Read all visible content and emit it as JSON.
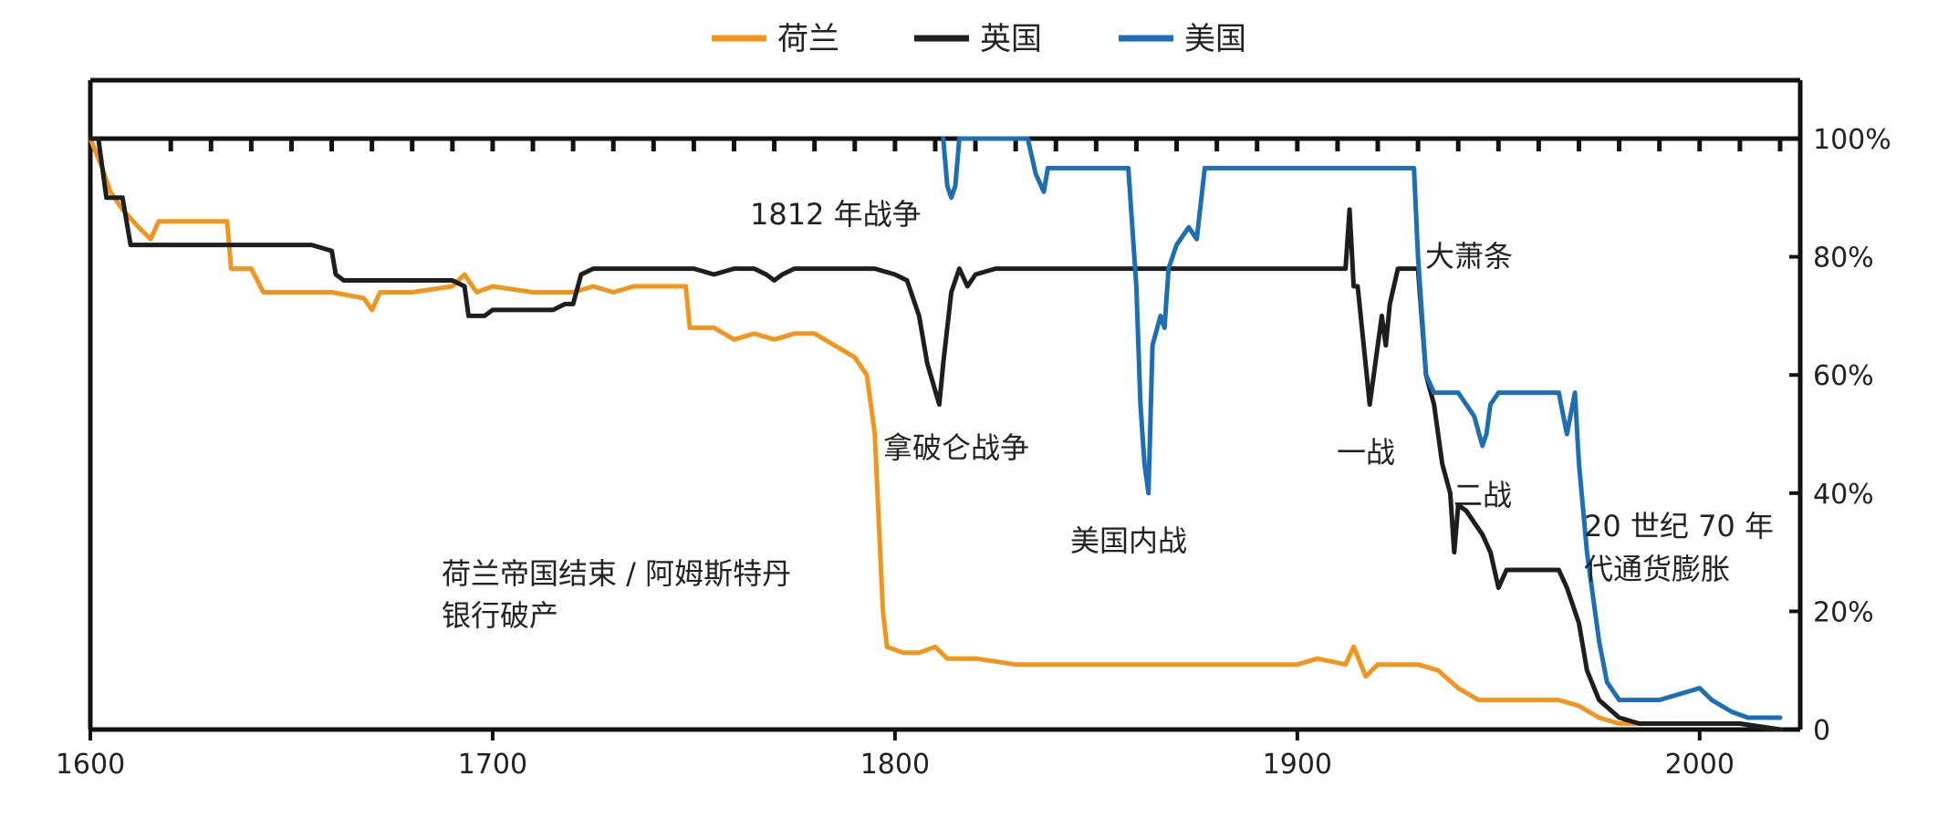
{
  "chart_data": {
    "type": "line",
    "title": "",
    "xlabel": "",
    "ylabel": "",
    "xlim": [
      1600,
      2025
    ],
    "ylim": [
      0,
      100
    ],
    "x_ticks": [
      1600,
      1700,
      1800,
      1900,
      2000
    ],
    "x_tick_labels": [
      "1600",
      "1700",
      "1800",
      "1900",
      "2000"
    ],
    "y_ticks": [
      0,
      20,
      40,
      60,
      80,
      100
    ],
    "y_tick_labels": [
      "0",
      "20%",
      "40%",
      "60%",
      "80%",
      "100%"
    ],
    "y_axis_side": "right",
    "legend_position": "top-center",
    "series": [
      {
        "name": "荷兰",
        "color": "#F0961E",
        "points": [
          [
            1600,
            100
          ],
          [
            1603,
            95
          ],
          [
            1605,
            91
          ],
          [
            1608,
            88
          ],
          [
            1612,
            85
          ],
          [
            1615,
            83
          ],
          [
            1617,
            86
          ],
          [
            1625,
            86
          ],
          [
            1630,
            86
          ],
          [
            1634,
            86
          ],
          [
            1635,
            78
          ],
          [
            1640,
            78
          ],
          [
            1643,
            74
          ],
          [
            1650,
            74
          ],
          [
            1660,
            74
          ],
          [
            1668,
            73
          ],
          [
            1670,
            71
          ],
          [
            1672,
            74
          ],
          [
            1680,
            74
          ],
          [
            1690,
            75
          ],
          [
            1693,
            77
          ],
          [
            1696,
            74
          ],
          [
            1700,
            75
          ],
          [
            1710,
            74
          ],
          [
            1720,
            74
          ],
          [
            1725,
            75
          ],
          [
            1730,
            74
          ],
          [
            1735,
            75
          ],
          [
            1740,
            75
          ],
          [
            1745,
            75
          ],
          [
            1748,
            75
          ],
          [
            1749,
            68
          ],
          [
            1755,
            68
          ],
          [
            1760,
            66
          ],
          [
            1765,
            67
          ],
          [
            1770,
            66
          ],
          [
            1775,
            67
          ],
          [
            1780,
            67
          ],
          [
            1785,
            65
          ],
          [
            1790,
            63
          ],
          [
            1793,
            60
          ],
          [
            1795,
            50
          ],
          [
            1796,
            35
          ],
          [
            1797,
            20
          ],
          [
            1798,
            14
          ],
          [
            1802,
            13
          ],
          [
            1806,
            13
          ],
          [
            1810,
            14
          ],
          [
            1813,
            12
          ],
          [
            1816,
            12
          ],
          [
            1820,
            12
          ],
          [
            1830,
            11
          ],
          [
            1840,
            11
          ],
          [
            1850,
            11
          ],
          [
            1860,
            11
          ],
          [
            1870,
            11
          ],
          [
            1880,
            11
          ],
          [
            1890,
            11
          ],
          [
            1900,
            11
          ],
          [
            1905,
            12
          ],
          [
            1912,
            11
          ],
          [
            1914,
            14
          ],
          [
            1917,
            9
          ],
          [
            1920,
            11
          ],
          [
            1925,
            11
          ],
          [
            1930,
            11
          ],
          [
            1935,
            10
          ],
          [
            1940,
            7
          ],
          [
            1945,
            5
          ],
          [
            1950,
            5
          ],
          [
            1955,
            5
          ],
          [
            1960,
            5
          ],
          [
            1965,
            5
          ],
          [
            1970,
            4
          ],
          [
            1975,
            2
          ],
          [
            1980,
            1
          ],
          [
            1990,
            1
          ],
          [
            2000,
            1
          ],
          [
            2010,
            1
          ],
          [
            2020,
            0
          ]
        ]
      },
      {
        "name": "英国",
        "color": "#1E1E1E",
        "points": [
          [
            1600,
            100
          ],
          [
            1602,
            100
          ],
          [
            1604,
            90
          ],
          [
            1608,
            90
          ],
          [
            1610,
            82
          ],
          [
            1620,
            82
          ],
          [
            1640,
            82
          ],
          [
            1655,
            82
          ],
          [
            1660,
            81
          ],
          [
            1661,
            77
          ],
          [
            1663,
            76
          ],
          [
            1670,
            76
          ],
          [
            1680,
            76
          ],
          [
            1690,
            76
          ],
          [
            1693,
            75
          ],
          [
            1694,
            70
          ],
          [
            1698,
            70
          ],
          [
            1700,
            71
          ],
          [
            1705,
            71
          ],
          [
            1715,
            71
          ],
          [
            1718,
            72
          ],
          [
            1720,
            72
          ],
          [
            1722,
            77
          ],
          [
            1725,
            78
          ],
          [
            1735,
            78
          ],
          [
            1745,
            78
          ],
          [
            1750,
            78
          ],
          [
            1755,
            77
          ],
          [
            1760,
            78
          ],
          [
            1765,
            78
          ],
          [
            1768,
            77
          ],
          [
            1770,
            76
          ],
          [
            1772,
            77
          ],
          [
            1775,
            78
          ],
          [
            1790,
            78
          ],
          [
            1795,
            78
          ],
          [
            1800,
            77
          ],
          [
            1803,
            76
          ],
          [
            1806,
            70
          ],
          [
            1808,
            62
          ],
          [
            1811,
            55
          ],
          [
            1812,
            62
          ],
          [
            1814,
            74
          ],
          [
            1816,
            78
          ],
          [
            1818,
            75
          ],
          [
            1820,
            77
          ],
          [
            1825,
            78
          ],
          [
            1840,
            78
          ],
          [
            1860,
            78
          ],
          [
            1880,
            78
          ],
          [
            1900,
            78
          ],
          [
            1910,
            78
          ],
          [
            1912,
            78
          ],
          [
            1913,
            88
          ],
          [
            1914,
            75
          ],
          [
            1915,
            75
          ],
          [
            1918,
            55
          ],
          [
            1919,
            60
          ],
          [
            1921,
            70
          ],
          [
            1922,
            65
          ],
          [
            1923,
            72
          ],
          [
            1925,
            78
          ],
          [
            1930,
            78
          ],
          [
            1932,
            60
          ],
          [
            1934,
            55
          ],
          [
            1936,
            45
          ],
          [
            1938,
            40
          ],
          [
            1939,
            30
          ],
          [
            1940,
            38
          ],
          [
            1942,
            37
          ],
          [
            1944,
            35
          ],
          [
            1946,
            33
          ],
          [
            1948,
            30
          ],
          [
            1950,
            24
          ],
          [
            1952,
            27
          ],
          [
            1960,
            27
          ],
          [
            1965,
            27
          ],
          [
            1967,
            24
          ],
          [
            1970,
            18
          ],
          [
            1972,
            10
          ],
          [
            1975,
            5
          ],
          [
            1980,
            2
          ],
          [
            1985,
            1
          ],
          [
            1990,
            1
          ],
          [
            2000,
            1
          ],
          [
            2010,
            1
          ],
          [
            2020,
            0
          ]
        ]
      },
      {
        "name": "美国",
        "color": "#1E6EB4",
        "points": [
          [
            1812,
            100
          ],
          [
            1813,
            92
          ],
          [
            1814,
            90
          ],
          [
            1815,
            92
          ],
          [
            1816,
            100
          ],
          [
            1833,
            100
          ],
          [
            1835,
            94
          ],
          [
            1837,
            91
          ],
          [
            1838,
            95
          ],
          [
            1845,
            95
          ],
          [
            1855,
            95
          ],
          [
            1858,
            95
          ],
          [
            1860,
            75
          ],
          [
            1861,
            55
          ],
          [
            1862,
            45
          ],
          [
            1863,
            40
          ],
          [
            1864,
            65
          ],
          [
            1866,
            70
          ],
          [
            1867,
            68
          ],
          [
            1868,
            78
          ],
          [
            1870,
            82
          ],
          [
            1873,
            85
          ],
          [
            1875,
            83
          ],
          [
            1877,
            95
          ],
          [
            1890,
            95
          ],
          [
            1900,
            95
          ],
          [
            1910,
            95
          ],
          [
            1920,
            95
          ],
          [
            1929,
            95
          ],
          [
            1930,
            80
          ],
          [
            1932,
            60
          ],
          [
            1934,
            57
          ],
          [
            1940,
            57
          ],
          [
            1942,
            55
          ],
          [
            1944,
            53
          ],
          [
            1946,
            48
          ],
          [
            1947,
            50
          ],
          [
            1948,
            55
          ],
          [
            1950,
            57
          ],
          [
            1955,
            57
          ],
          [
            1965,
            57
          ],
          [
            1967,
            50
          ],
          [
            1969,
            57
          ],
          [
            1970,
            45
          ],
          [
            1972,
            30
          ],
          [
            1975,
            15
          ],
          [
            1977,
            8
          ],
          [
            1980,
            5
          ],
          [
            1985,
            5
          ],
          [
            1990,
            5
          ],
          [
            1995,
            6
          ],
          [
            2000,
            7
          ],
          [
            2003,
            5
          ],
          [
            2008,
            3
          ],
          [
            2012,
            2
          ],
          [
            2015,
            2
          ],
          [
            2020,
            2
          ]
        ]
      }
    ],
    "annotations": [
      {
        "id": "napoleonic-war",
        "lines": [
          "拿破仑战争"
        ]
      },
      {
        "id": "war-of-1812",
        "lines": [
          "1812 年战争"
        ]
      },
      {
        "id": "us-civil-war",
        "lines": [
          "美国内战"
        ]
      },
      {
        "id": "dutch-empire-end",
        "lines": [
          "荷兰帝国结束 / 阿姆斯特丹",
          "银行破产"
        ]
      },
      {
        "id": "great-depression",
        "lines": [
          "大萧条"
        ]
      },
      {
        "id": "ww1",
        "lines": [
          "一战"
        ]
      },
      {
        "id": "ww2",
        "lines": [
          "二战"
        ]
      },
      {
        "id": "inflation-1970s",
        "lines": [
          "20 世纪 70 年",
          "代通货膨胀"
        ]
      }
    ]
  }
}
